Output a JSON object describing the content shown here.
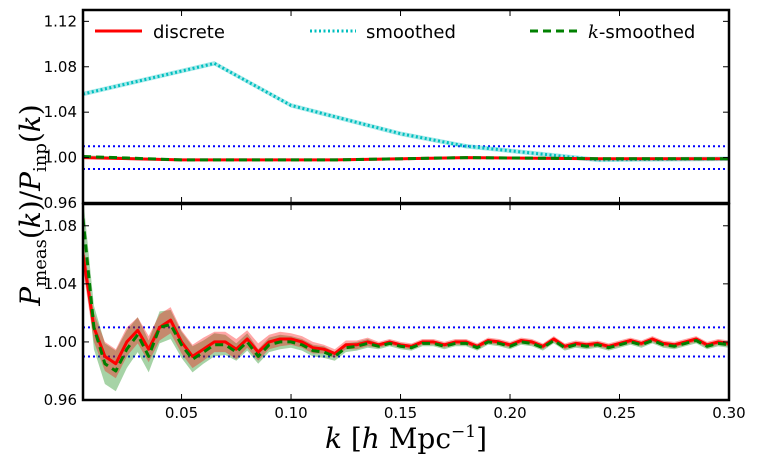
{
  "chart_data": {
    "type": "line",
    "ylabel": "Pmeas(k)/Pinp(k)",
    "xlabel": "k [h Mpc⁻¹]",
    "xlim": [
      0.005,
      0.3
    ],
    "xticks": [
      0.05,
      0.1,
      0.15,
      0.2,
      0.25,
      0.3
    ],
    "xtick_labels": [
      "0.05",
      "0.10",
      "0.15",
      "0.20",
      "0.25",
      "0.30"
    ],
    "legend": [
      {
        "key": "discrete",
        "label": "discrete",
        "color": "#ff0000",
        "style": "solid"
      },
      {
        "key": "smoothed",
        "label": "smoothed",
        "color": "#00bfbf",
        "style": "dotted"
      },
      {
        "key": "ksmoothed",
        "label": "k-smoothed",
        "color": "#008000",
        "style": "dashed"
      }
    ],
    "panels": [
      {
        "name": "top",
        "ylim": [
          0.96,
          1.13
        ],
        "yticks": [
          0.96,
          1.0,
          1.04,
          1.08,
          1.12
        ],
        "ytick_labels": [
          "0.96",
          "1.00",
          "1.04",
          "1.08",
          "1.12"
        ],
        "reference_lines": [
          0.99,
          1.01
        ],
        "series": [
          {
            "name": "smoothed",
            "color": "#00bfbf",
            "style": "dotted",
            "x": [
              0.005,
              0.065,
              0.1,
              0.15,
              0.18,
              0.24,
              0.3
            ],
            "y": [
              1.056,
              1.083,
              1.046,
              1.021,
              1.01,
              0.998,
              0.999
            ],
            "band": 0.002
          },
          {
            "name": "discrete",
            "color": "#ff0000",
            "style": "solid",
            "x": [
              0.005,
              0.05,
              0.12,
              0.18,
              0.24,
              0.3
            ],
            "y": [
              1.0,
              0.998,
              0.998,
              1.0,
              0.999,
              0.999
            ],
            "band": 0.001
          },
          {
            "name": "k-smoothed",
            "color": "#008000",
            "style": "dashed",
            "x": [
              0.005,
              0.05,
              0.12,
              0.18,
              0.24,
              0.3
            ],
            "y": [
              1.001,
              0.998,
              0.998,
              1.0,
              0.999,
              0.999
            ],
            "band": 0.001
          }
        ]
      },
      {
        "name": "bottom",
        "ylim": [
          0.96,
          1.095
        ],
        "yticks": [
          0.96,
          1.0,
          1.04,
          1.08
        ],
        "ytick_labels": [
          "0.96",
          "1.00",
          "1.04",
          "1.08"
        ],
        "reference_lines": [
          0.99,
          1.01
        ],
        "series": [
          {
            "name": "discrete",
            "color": "#ff0000",
            "style": "solid",
            "x": [
              0.005,
              0.01,
              0.015,
              0.02,
              0.025,
              0.03,
              0.035,
              0.04,
              0.045,
              0.05,
              0.055,
              0.06,
              0.065,
              0.07,
              0.075,
              0.08,
              0.085,
              0.09,
              0.095,
              0.1,
              0.105,
              0.11,
              0.115,
              0.12,
              0.125,
              0.13,
              0.135,
              0.14,
              0.145,
              0.15,
              0.155,
              0.16,
              0.165,
              0.17,
              0.175,
              0.18,
              0.185,
              0.19,
              0.195,
              0.2,
              0.205,
              0.21,
              0.215,
              0.22,
              0.225,
              0.23,
              0.235,
              0.24,
              0.245,
              0.25,
              0.255,
              0.26,
              0.265,
              0.27,
              0.275,
              0.28,
              0.285,
              0.29,
              0.295,
              0.3
            ],
            "y": [
              1.06,
              1.01,
              0.99,
              0.985,
              1.0,
              1.008,
              0.995,
              1.01,
              1.015,
              1.0,
              0.99,
              0.995,
              1.0,
              1.0,
              0.995,
              1.002,
              0.993,
              1.0,
              1.002,
              1.002,
              1.0,
              0.996,
              0.995,
              0.992,
              0.998,
              0.998,
              1.0,
              0.998,
              1.0,
              0.998,
              0.997,
              1.0,
              1.0,
              0.998,
              1.0,
              1.0,
              0.997,
              1.001,
              1.0,
              0.998,
              1.001,
              1.0,
              0.997,
              1.002,
              0.997,
              0.999,
              0.998,
              0.999,
              0.997,
              0.999,
              1.001,
              0.999,
              1.002,
              0.999,
              0.998,
              1.0,
              1.002,
              0.998,
              1.0,
              0.999
            ],
            "band": [
              0.01,
              0.01,
              0.01,
              0.01,
              0.01,
              0.009,
              0.009,
              0.009,
              0.009,
              0.008,
              0.008,
              0.008,
              0.007,
              0.007,
              0.007,
              0.006,
              0.006,
              0.005,
              0.005,
              0.004,
              0.004,
              0.004,
              0.003,
              0.003,
              0.003,
              0.003,
              0.003,
              0.002,
              0.002,
              0.002,
              0.002,
              0.002,
              0.002,
              0.002,
              0.002,
              0.002,
              0.002,
              0.002,
              0.002,
              0.002,
              0.002,
              0.002,
              0.002,
              0.002,
              0.002,
              0.002,
              0.002,
              0.002,
              0.002,
              0.002,
              0.002,
              0.002,
              0.002,
              0.002,
              0.002,
              0.002,
              0.002,
              0.002,
              0.002,
              0.002
            ]
          },
          {
            "name": "k-smoothed",
            "color": "#008000",
            "style": "dashed",
            "x": [
              0.005,
              0.01,
              0.015,
              0.02,
              0.025,
              0.03,
              0.035,
              0.04,
              0.045,
              0.05,
              0.055,
              0.06,
              0.065,
              0.07,
              0.075,
              0.08,
              0.085,
              0.09,
              0.095,
              0.1,
              0.105,
              0.11,
              0.115,
              0.12,
              0.125,
              0.13,
              0.135,
              0.14,
              0.145,
              0.15,
              0.155,
              0.16,
              0.165,
              0.17,
              0.175,
              0.18,
              0.185,
              0.19,
              0.195,
              0.2,
              0.205,
              0.21,
              0.215,
              0.22,
              0.225,
              0.23,
              0.235,
              0.24,
              0.245,
              0.25,
              0.255,
              0.26,
              0.265,
              0.27,
              0.275,
              0.28,
              0.285,
              0.29,
              0.295,
              0.3
            ],
            "y": [
              1.085,
              1.01,
              0.985,
              0.98,
              0.995,
              1.005,
              0.99,
              1.01,
              1.012,
              0.998,
              0.988,
              0.993,
              0.998,
              0.998,
              0.993,
              1.0,
              0.99,
              0.998,
              1.0,
              1.0,
              0.998,
              0.994,
              0.993,
              0.99,
              0.996,
              0.997,
              0.999,
              0.997,
              0.999,
              0.997,
              0.996,
              0.999,
              0.999,
              0.997,
              0.999,
              0.999,
              0.996,
              1.0,
              0.999,
              0.997,
              1.0,
              0.999,
              0.996,
              1.001,
              0.996,
              0.998,
              0.997,
              0.998,
              0.996,
              0.998,
              1.0,
              0.998,
              1.001,
              0.998,
              0.997,
              0.999,
              1.001,
              0.997,
              0.999,
              0.998
            ],
            "band": [
              0.015,
              0.015,
              0.014,
              0.014,
              0.013,
              0.012,
              0.011,
              0.011,
              0.01,
              0.009,
              0.009,
              0.008,
              0.008,
              0.007,
              0.006,
              0.006,
              0.005,
              0.005,
              0.005,
              0.004,
              0.004,
              0.004,
              0.004,
              0.003,
              0.003,
              0.003,
              0.003,
              0.002,
              0.002,
              0.002,
              0.002,
              0.002,
              0.002,
              0.002,
              0.002,
              0.002,
              0.002,
              0.002,
              0.002,
              0.002,
              0.002,
              0.002,
              0.002,
              0.002,
              0.002,
              0.002,
              0.002,
              0.002,
              0.002,
              0.002,
              0.002,
              0.002,
              0.002,
              0.002,
              0.002,
              0.002,
              0.002,
              0.002,
              0.002,
              0.002
            ]
          }
        ]
      }
    ]
  }
}
